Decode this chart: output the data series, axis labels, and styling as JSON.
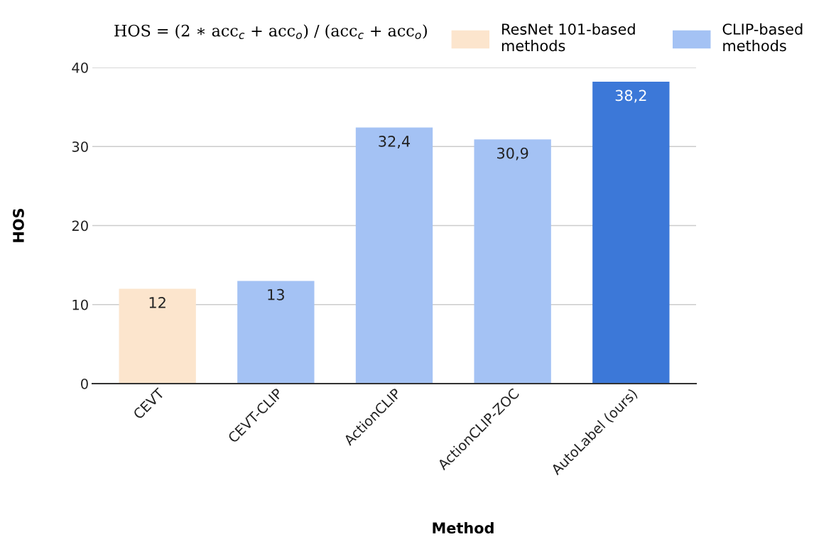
{
  "chart_data": {
    "type": "bar",
    "xlabel": "Method",
    "ylabel": "HOS",
    "categories": [
      "CEVT",
      "CEVT-CLIP",
      "ActionCLIP",
      "ActionCLIP-ZOC",
      "AutoLabel (ours)"
    ],
    "series": [
      {
        "name": "ResNet 101-based methods",
        "color": "#fce5cd",
        "values": [
          12,
          null,
          null,
          null,
          null
        ],
        "value_labels": [
          "12",
          null,
          null,
          null,
          null
        ]
      },
      {
        "name": "CLIP-based methods",
        "color": "#a4c2f4",
        "colors": [
          "#a4c2f4",
          "#a4c2f4",
          "#a4c2f4",
          "#a4c2f4",
          "#3c78d8"
        ],
        "values": [
          null,
          13,
          32.4,
          30.9,
          38.2
        ],
        "value_labels": [
          null,
          "13",
          "32,4",
          "30,9",
          "38,2"
        ]
      }
    ],
    "ylim": [
      0,
      40
    ],
    "yticks": [
      0,
      10,
      20,
      30,
      40
    ],
    "grid": "y",
    "legend": "top right",
    "annotations": [
      "HOS = (2 ∗ acc$_{c}$ + acc$_{o}$) / (acc$_{c}$ + acc$_{o}$)"
    ]
  }
}
